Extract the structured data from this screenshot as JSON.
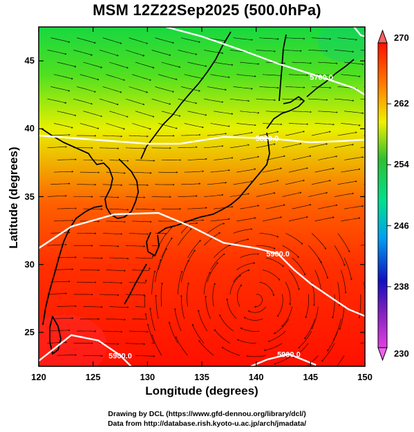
{
  "title": "MSM 12Z22Sep2025 (500.0hPa)",
  "credits": {
    "line1": "Drawing by DCL (https://www.gfd-dennou.org/library/dcl/)",
    "line2": "Data from http://database.rish.kyoto-u.ac.jp/arch/jmadata/"
  },
  "chart_data": {
    "type": "heatmap",
    "xlabel": "Longitude (degrees)",
    "ylabel": "Latitude  (degrees)",
    "xlim": [
      120,
      150
    ],
    "ylim": [
      22.5,
      47.5
    ],
    "x_ticks": [
      120,
      125,
      130,
      135,
      140,
      145,
      150
    ],
    "y_ticks": [
      25,
      30,
      35,
      40,
      45
    ],
    "colorbar": {
      "min": 230,
      "max": 270,
      "ticks": [
        230,
        238,
        246,
        254,
        262,
        270
      ],
      "colors": [
        "#e040e0",
        "#1010c0",
        "#00a0f0",
        "#00e090",
        "#30c030",
        "#f0f000",
        "#ff8000",
        "#ff1000"
      ]
    },
    "contours": [
      {
        "label": "5900.0",
        "points": [
          [
            120,
            22.9
          ],
          [
            123,
            24.8
          ],
          [
            125.5,
            24.4
          ],
          [
            127.5,
            23.3
          ],
          [
            128.5,
            22.5
          ]
        ]
      },
      {
        "label": "5900.0",
        "points": [
          [
            120,
            31.2
          ],
          [
            123,
            32.8
          ],
          [
            127,
            33.7
          ],
          [
            131,
            33.8
          ],
          [
            134,
            32.8
          ],
          [
            137,
            31.6
          ],
          [
            140,
            31.2
          ],
          [
            142,
            30.8
          ],
          [
            143.5,
            29.6
          ],
          [
            145,
            28.6
          ],
          [
            147,
            27.5
          ],
          [
            148.5,
            26.7
          ],
          [
            150,
            26.2
          ]
        ]
      },
      {
        "label": "5900.0",
        "points": [
          [
            139.5,
            22.5
          ],
          [
            141,
            23.0
          ],
          [
            143,
            23.4
          ],
          [
            145.5,
            22.6
          ]
        ]
      },
      {
        "label": "5820.0",
        "points": [
          [
            120,
            39.5
          ],
          [
            125,
            39.2
          ],
          [
            130,
            38.9
          ],
          [
            133,
            38.9
          ],
          [
            137,
            39.4
          ],
          [
            141,
            39.3
          ],
          [
            145,
            39.0
          ],
          [
            148,
            39.1
          ],
          [
            150,
            39.2
          ]
        ]
      },
      {
        "label": "5700.0",
        "points": [
          [
            131.7,
            47.5
          ],
          [
            135,
            46.8
          ],
          [
            139,
            45.7
          ],
          [
            142,
            44.8
          ],
          [
            146,
            43.8
          ],
          [
            149,
            43.0
          ],
          [
            150,
            42.5
          ]
        ]
      },
      {
        "label": "",
        "points": [
          [
            149.0,
            47.5
          ],
          [
            149.6,
            46.9
          ],
          [
            150,
            46.8
          ]
        ]
      }
    ],
    "wind_field": {
      "prevailing": "westerly",
      "anticyclone_center": [
        140,
        27.5
      ]
    }
  }
}
